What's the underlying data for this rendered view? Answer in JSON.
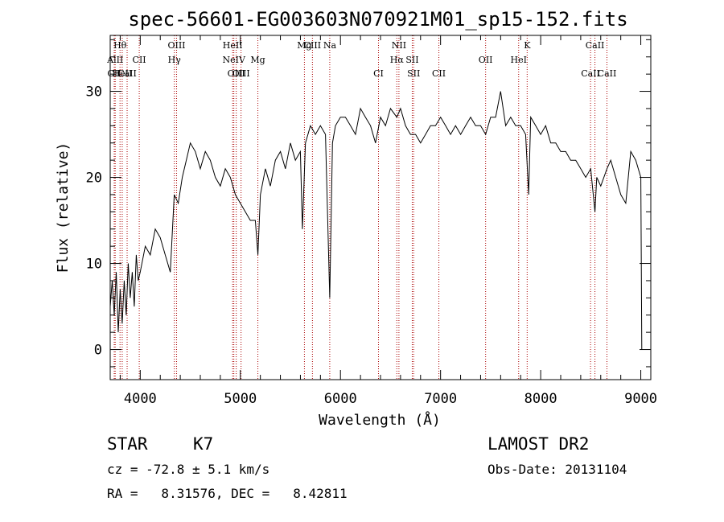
{
  "chart_data": {
    "type": "line",
    "title": "spec-56601-EG003603N070921M01_sp15-152.fits",
    "xlabel": "Wavelength (Å)",
    "ylabel": "Flux (relative)",
    "xlim": [
      3700,
      9100
    ],
    "ylim": [
      -3.5,
      36.5
    ],
    "xticks": [
      4000,
      5000,
      6000,
      7000,
      8000,
      9000
    ],
    "yticks": [
      0,
      10,
      20,
      30
    ],
    "grid": false,
    "series": [
      {
        "x": [
          3700,
          3720,
          3740,
          3760,
          3780,
          3800,
          3820,
          3840,
          3860,
          3880,
          3900,
          3920,
          3940,
          3960,
          3980,
          4000,
          4050,
          4100,
          4150,
          4200,
          4250,
          4300,
          4340,
          4380,
          4420,
          4460,
          4500,
          4550,
          4600,
          4650,
          4700,
          4750,
          4800,
          4850,
          4900,
          4950,
          5000,
          5050,
          5100,
          5150,
          5175,
          5200,
          5250,
          5300,
          5350,
          5400,
          5450,
          5500,
          5550,
          5600,
          5620,
          5650,
          5700,
          5750,
          5800,
          5850,
          5893,
          5920,
          5950,
          6000,
          6050,
          6100,
          6150,
          6200,
          6250,
          6300,
          6350,
          6400,
          6450,
          6500,
          6563,
          6600,
          6650,
          6700,
          6750,
          6800,
          6850,
          6900,
          6950,
          7000,
          7050,
          7100,
          7150,
          7200,
          7250,
          7300,
          7350,
          7400,
          7450,
          7500,
          7550,
          7600,
          7650,
          7700,
          7750,
          7800,
          7850,
          7880,
          7900,
          7950,
          8000,
          8050,
          8100,
          8150,
          8200,
          8250,
          8300,
          8350,
          8400,
          8450,
          8500,
          8542,
          8560,
          8600,
          8662,
          8700,
          8750,
          8800,
          8850,
          8900,
          8950,
          9000,
          9010
        ],
        "y": [
          5,
          8,
          4,
          9,
          2,
          7,
          3,
          8,
          4,
          10,
          6,
          9,
          5,
          11,
          8,
          9,
          12,
          11,
          14,
          13,
          11,
          9,
          18,
          17,
          20,
          22,
          24,
          23,
          21,
          23,
          22,
          20,
          19,
          21,
          20,
          18,
          17,
          16,
          15,
          15,
          11,
          18,
          21,
          19,
          22,
          23,
          21,
          24,
          22,
          23,
          14,
          24,
          26,
          25,
          26,
          25,
          6,
          24,
          26,
          27,
          27,
          26,
          25,
          28,
          27,
          26,
          24,
          27,
          26,
          28,
          27,
          28,
          26,
          25,
          25,
          24,
          25,
          26,
          26,
          27,
          26,
          25,
          26,
          25,
          26,
          27,
          26,
          26,
          25,
          27,
          27,
          30,
          26,
          27,
          26,
          26,
          25,
          18,
          27,
          26,
          25,
          26,
          24,
          24,
          23,
          23,
          22,
          22,
          21,
          20,
          21,
          16,
          20,
          19,
          21,
          22,
          20,
          18,
          17,
          23,
          22,
          20,
          0
        ]
      }
    ],
    "spectral_lines": [
      {
        "name": "Hθ",
        "wave": 3798,
        "row": 0
      },
      {
        "name": "AlII",
        "wave": 3750,
        "row": 1
      },
      {
        "name": "CII",
        "wave": 3740,
        "row": 2
      },
      {
        "name": "HeII",
        "wave": 3820,
        "row": 2
      },
      {
        "name": "CaII",
        "wave": 3869,
        "row": 2
      },
      {
        "name": "CII",
        "wave": 3990,
        "row": 1
      },
      {
        "name": "OIII",
        "wave": 4363,
        "row": 0
      },
      {
        "name": "Hγ",
        "wave": 4341,
        "row": 1
      },
      {
        "name": "HeII",
        "wave": 4923,
        "row": 0
      },
      {
        "name": "NeIV",
        "wave": 4935,
        "row": 1
      },
      {
        "name": "OIII",
        "wave": 4959,
        "row": 2
      },
      {
        "name": "OIII",
        "wave": 5007,
        "row": 2
      },
      {
        "name": "Mg",
        "wave": 5175,
        "row": 1
      },
      {
        "name": "Mg",
        "wave": 5640,
        "row": 0
      },
      {
        "name": "CIII",
        "wave": 5720,
        "row": 0
      },
      {
        "name": "Na",
        "wave": 5893,
        "row": 0
      },
      {
        "name": "CI",
        "wave": 6380,
        "row": 2
      },
      {
        "name": "NII",
        "wave": 6584,
        "row": 0
      },
      {
        "name": "Hα",
        "wave": 6563,
        "row": 1
      },
      {
        "name": "SII",
        "wave": 6717,
        "row": 1
      },
      {
        "name": "SII",
        "wave": 6731,
        "row": 2
      },
      {
        "name": "CII",
        "wave": 6983,
        "row": 2
      },
      {
        "name": "OII",
        "wave": 7450,
        "row": 1
      },
      {
        "name": "K",
        "wave": 7865,
        "row": 0
      },
      {
        "name": "HeI",
        "wave": 7780,
        "row": 1
      },
      {
        "name": "CaII",
        "wave": 8542,
        "row": 0
      },
      {
        "name": "CaII",
        "wave": 8498,
        "row": 2
      },
      {
        "name": "CaII",
        "wave": 8662,
        "row": 2
      }
    ],
    "annotations": {
      "class": "STAR",
      "subclass": "K7",
      "survey": "LAMOST DR2",
      "cz": "cz = -72.8 ± 5.1 km/s",
      "obs_date": "Obs-Date: 20131104",
      "coords": "RA =   8.31576, DEC =   8.42811"
    },
    "colors": {
      "spectrum": "#000000",
      "line_markers": "#aa0000"
    }
  }
}
